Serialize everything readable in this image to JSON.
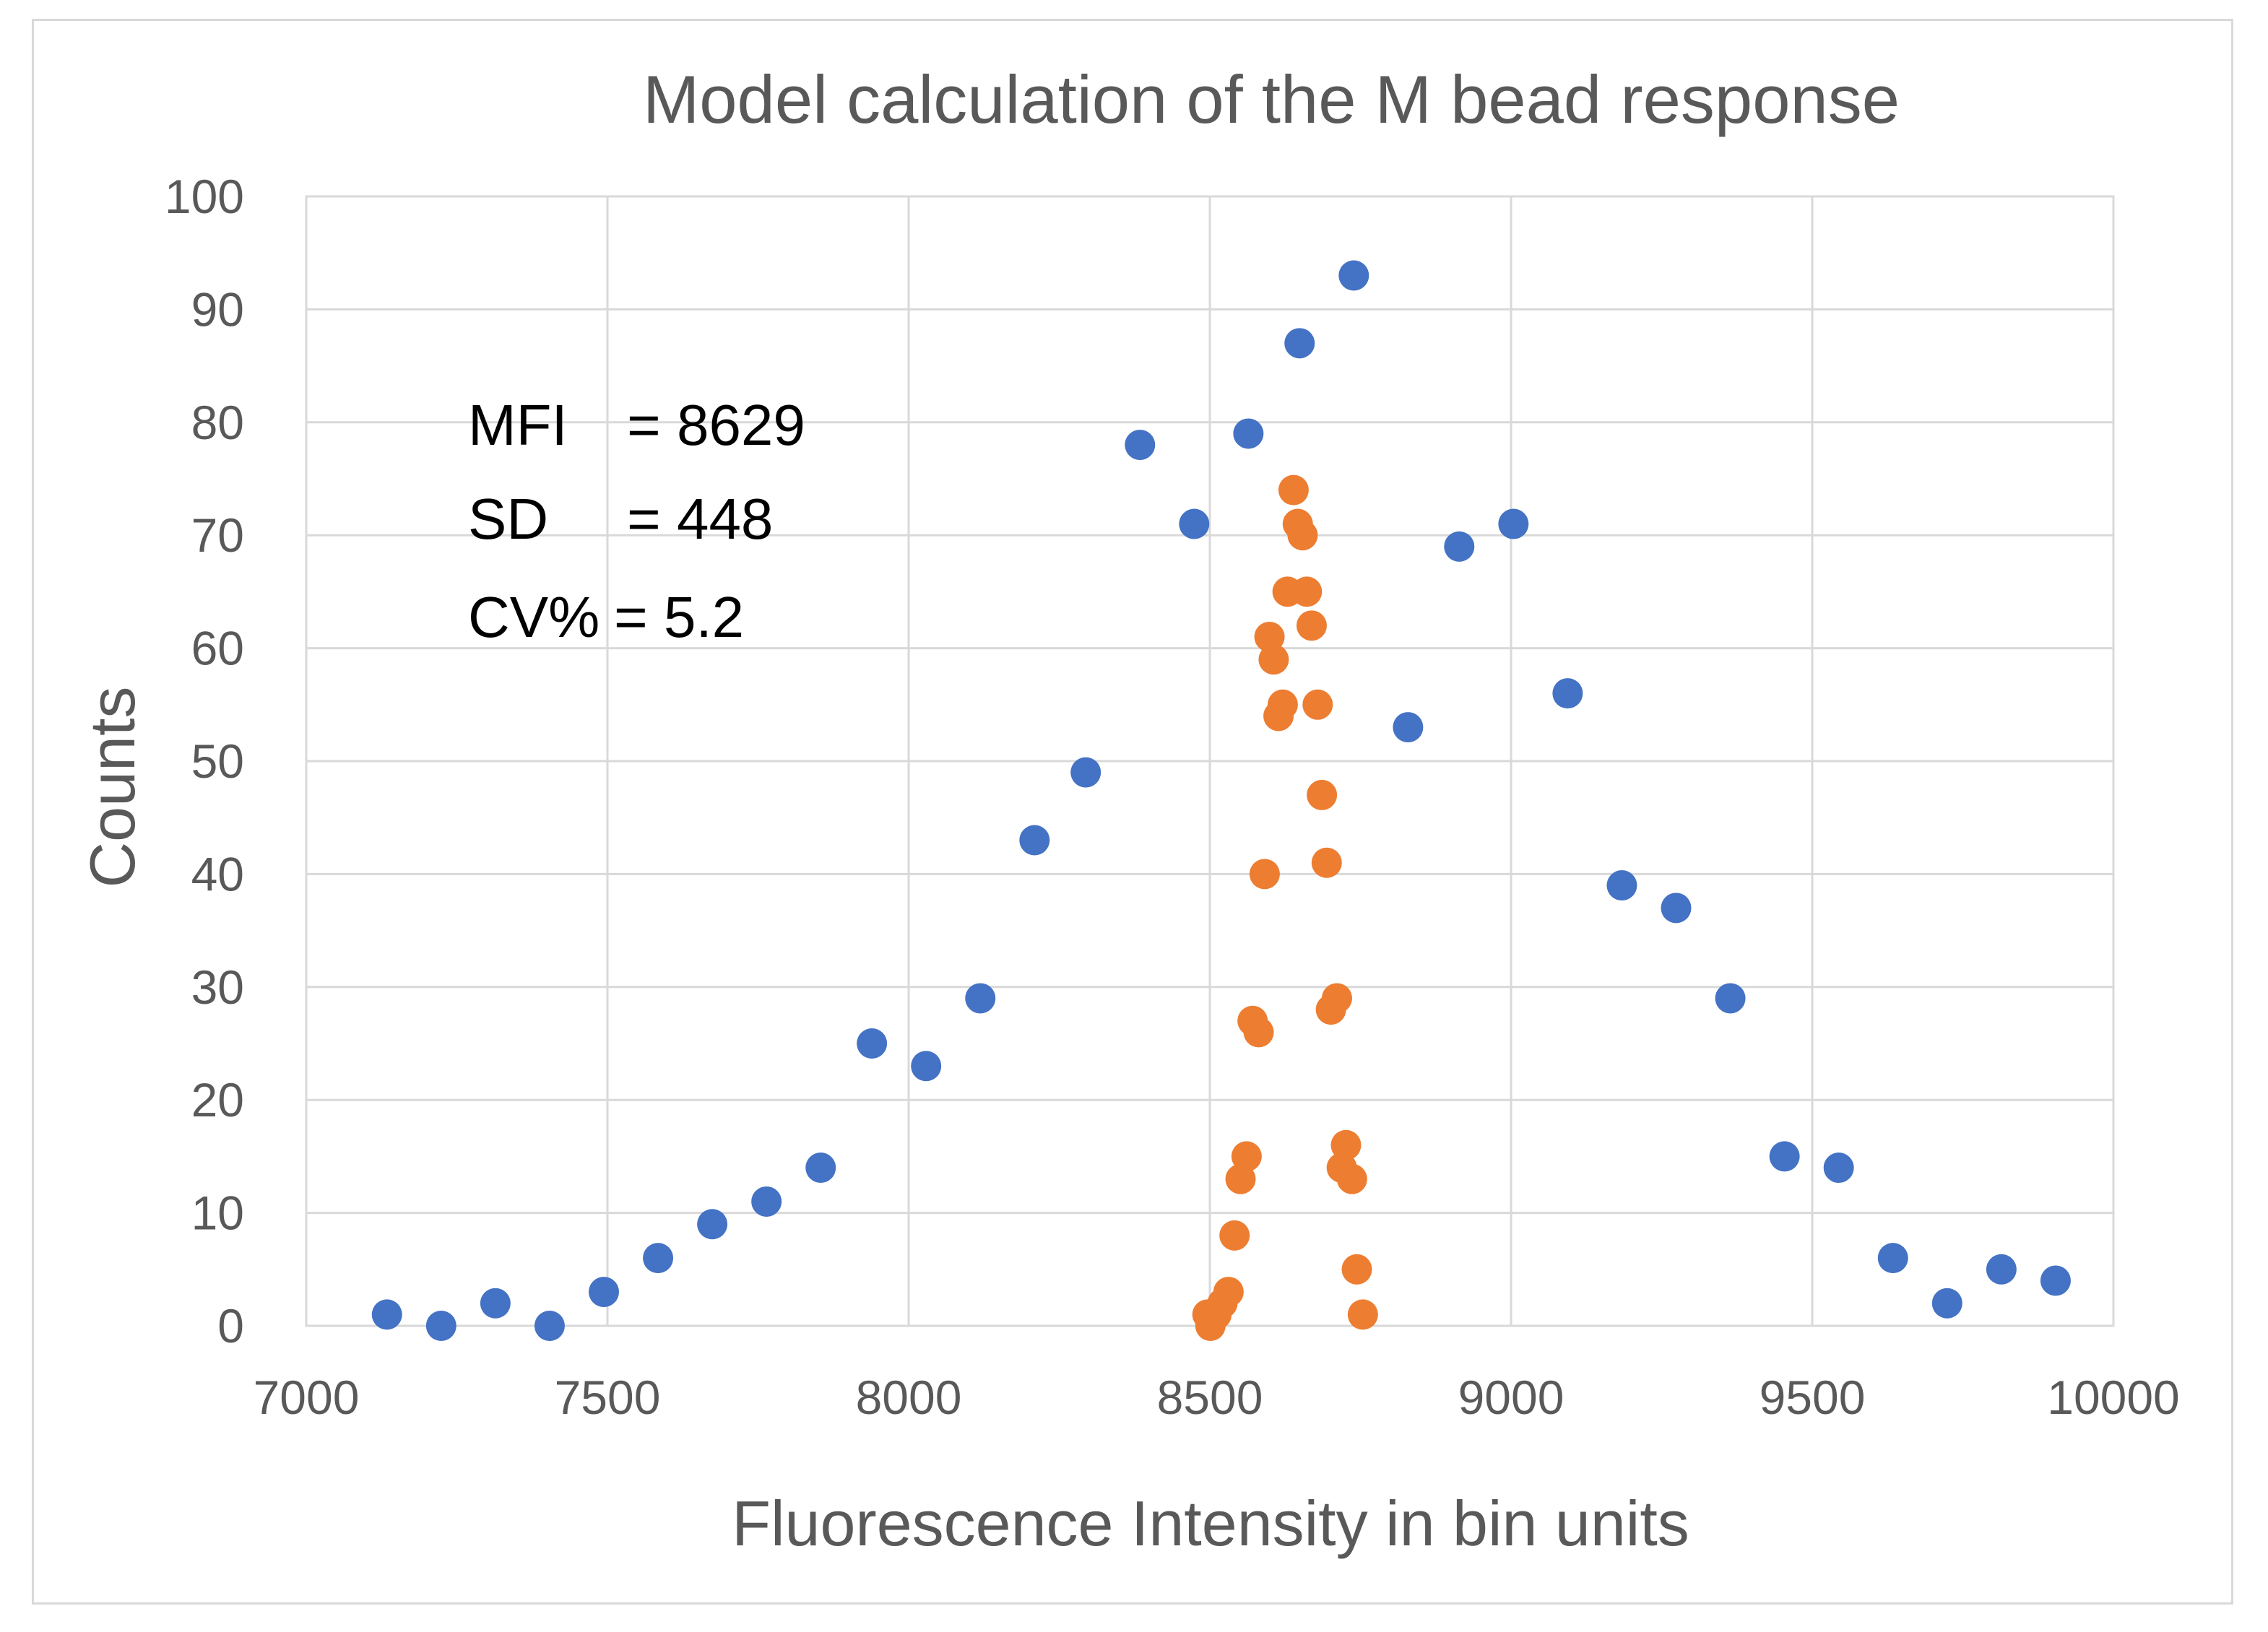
{
  "chart_data": {
    "type": "scatter",
    "title": "Model calculation of the M bead response",
    "xlabel": "Fluorescence Intensity in bin units",
    "ylabel": "Counts",
    "xlim": [
      7000,
      10000
    ],
    "ylim": [
      0,
      100
    ],
    "x_ticks": [
      "7000",
      "7500",
      "8000",
      "8500",
      "9000",
      "9500",
      "10000"
    ],
    "y_ticks": [
      "0",
      "10",
      "20",
      "30",
      "40",
      "50",
      "60",
      "70",
      "80",
      "90",
      "100"
    ],
    "grid": true,
    "legend": "none",
    "annotations": [
      {
        "label": "MFI",
        "eq": "= 8629"
      },
      {
        "label": "SD",
        "eq": "= 448"
      },
      {
        "label": "CV%",
        "eq": "= 5.2"
      }
    ],
    "series": [
      {
        "color": "#4472c4",
        "points": [
          [
            7134,
            1
          ],
          [
            7224,
            0
          ],
          [
            7314,
            2
          ],
          [
            7404,
            0
          ],
          [
            7494,
            3
          ],
          [
            7584,
            6
          ],
          [
            7674,
            9
          ],
          [
            7764,
            11
          ],
          [
            7854,
            14
          ],
          [
            7939,
            25
          ],
          [
            8029,
            23
          ],
          [
            8119,
            29
          ],
          [
            8209,
            43
          ],
          [
            8294,
            49
          ],
          [
            8384,
            78
          ],
          [
            8474,
            71
          ],
          [
            8564,
            79
          ],
          [
            8649,
            87
          ],
          [
            8739,
            93
          ],
          [
            8829,
            53
          ],
          [
            8914,
            69
          ],
          [
            9004,
            71
          ],
          [
            9094,
            56
          ],
          [
            9184,
            39
          ],
          [
            9274,
            37
          ],
          [
            9364,
            29
          ],
          [
            9454,
            15
          ],
          [
            9544,
            14
          ],
          [
            9634,
            6
          ],
          [
            9724,
            2
          ],
          [
            9814,
            5
          ],
          [
            9904,
            4
          ]
        ]
      },
      {
        "color": "#ed7d31",
        "points": [
          [
            8501,
            0
          ],
          [
            8496,
            1
          ],
          [
            8511,
            1
          ],
          [
            8521,
            2
          ],
          [
            8531,
            3
          ],
          [
            8541,
            8
          ],
          [
            8551,
            13
          ],
          [
            8561,
            15
          ],
          [
            8571,
            27
          ],
          [
            8581,
            26
          ],
          [
            8591,
            40
          ],
          [
            8599,
            61
          ],
          [
            8606,
            59
          ],
          [
            8614,
            54
          ],
          [
            8621,
            55
          ],
          [
            8629,
            65
          ],
          [
            8639,
            74
          ],
          [
            8646,
            71
          ],
          [
            8654,
            70
          ],
          [
            8661,
            65
          ],
          [
            8669,
            62
          ],
          [
            8679,
            55
          ],
          [
            8686,
            47
          ],
          [
            8694,
            41
          ],
          [
            8701,
            28
          ],
          [
            8711,
            29
          ],
          [
            8719,
            14
          ],
          [
            8726,
            16
          ],
          [
            8736,
            13
          ],
          [
            8744,
            5
          ],
          [
            8754,
            1
          ]
        ]
      }
    ]
  }
}
